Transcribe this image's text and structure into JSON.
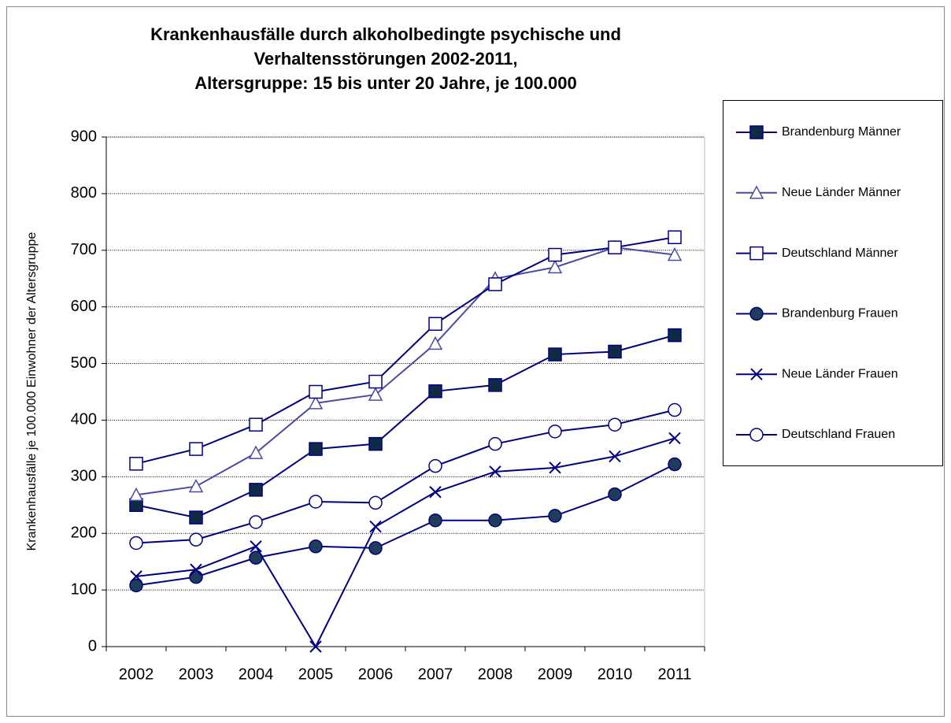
{
  "chart_data": {
    "type": "line",
    "title": [
      "Krankenhausfälle durch alkoholbedingte psychische und",
      "Verhaltensstörungen  2002-2011,",
      "Altersgruppe: 15 bis unter 20 Jahre, je 100.000"
    ],
    "y_label": "Krankenhausfälle je 100.000 Einwohner der Altersgruppe",
    "categories": [
      "2002",
      "2003",
      "2004",
      "2005",
      "2006",
      "2007",
      "2008",
      "2009",
      "2010",
      "2011"
    ],
    "ylim": [
      0,
      900
    ],
    "yticks": [
      0,
      100,
      200,
      300,
      400,
      500,
      600,
      700,
      800,
      900
    ],
    "grid": true,
    "legend": "right",
    "series": [
      {
        "name": "Brandenburg Männer",
        "color": "#000080",
        "marker": "square",
        "marker_fill": "#0f2a45",
        "values": [
          250,
          228,
          277,
          349,
          358,
          451,
          462,
          516,
          521,
          550
        ]
      },
      {
        "name": "Neue Länder Männer",
        "color": "#4b4ba6",
        "marker": "triangle",
        "marker_fill": "#ffffff",
        "values": [
          268,
          283,
          342,
          430,
          445,
          535,
          650,
          670,
          705,
          692
        ]
      },
      {
        "name": "Deutschland Männer",
        "color": "#000080",
        "marker": "square",
        "marker_fill": "#ffffff",
        "values": [
          323,
          349,
          392,
          450,
          468,
          570,
          640,
          692,
          705,
          723
        ]
      },
      {
        "name": "Brandenburg Frauen",
        "color": "#000080",
        "marker": "circle",
        "marker_fill": "#1f3d5a",
        "values": [
          108,
          123,
          157,
          177,
          174,
          223,
          223,
          231,
          269,
          322
        ]
      },
      {
        "name": "Neue Länder Frauen",
        "color": "#000080",
        "marker": "x",
        "marker_fill": "none",
        "values": [
          124,
          136,
          177,
          0,
          212,
          273,
          309,
          316,
          336,
          368
        ]
      },
      {
        "name": "Deutschland Frauen",
        "color": "#000080",
        "marker": "circle",
        "marker_fill": "#ffffff",
        "values": [
          183,
          189,
          220,
          256,
          254,
          319,
          358,
          380,
          392,
          418
        ]
      }
    ]
  }
}
